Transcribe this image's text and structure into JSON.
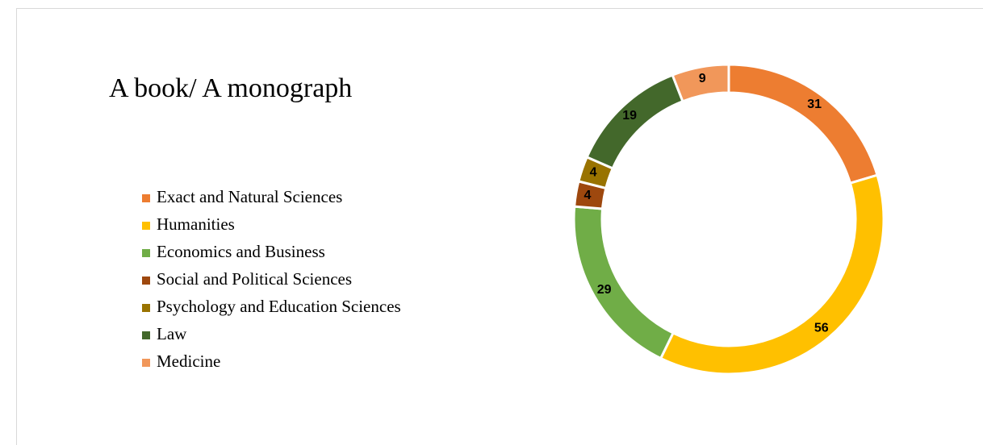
{
  "chart_data": {
    "type": "donut",
    "title": "A book/ A monograph",
    "categories": [
      "Exact and Natural Sciences",
      "Humanities",
      "Economics and Business",
      "Social and Political Sciences",
      "Psychology and Education Sciences",
      "Law",
      "Medicine"
    ],
    "values": [
      31,
      56,
      29,
      4,
      4,
      19,
      9
    ],
    "colors": [
      "#ED7D31",
      "#FFC000",
      "#70AD47",
      "#9E480E",
      "#997300",
      "#43682B",
      "#F1975A"
    ],
    "legend": "left"
  }
}
